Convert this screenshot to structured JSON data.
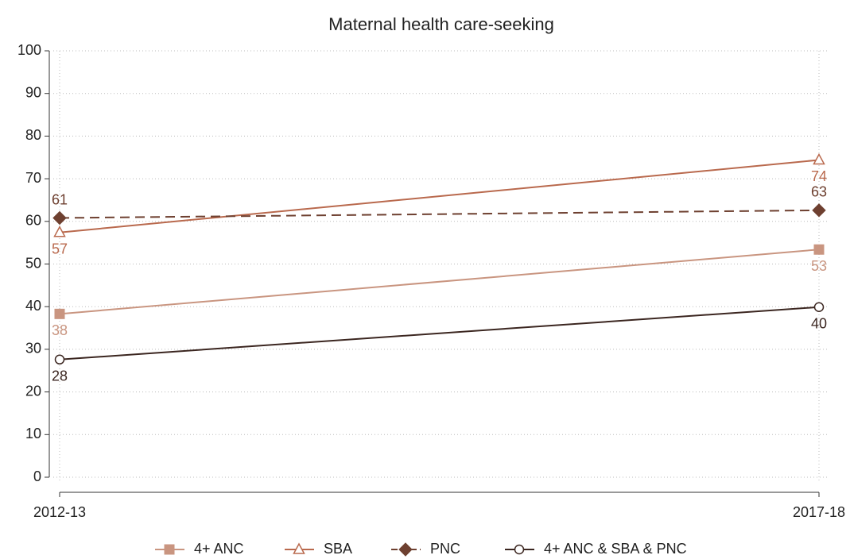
{
  "chart_data": {
    "type": "line",
    "title": "Maternal health care-seeking",
    "categories": [
      "2012-13",
      "2017-18"
    ],
    "series": [
      {
        "name": "4+ ANC",
        "color": "#c99580",
        "marker": "square",
        "line_style": "solid",
        "values": [
          38.3,
          53.4
        ],
        "value_labels": [
          "38",
          "53"
        ]
      },
      {
        "name": "SBA",
        "color": "#b9694d",
        "marker": "triangle-open",
        "line_style": "solid",
        "values": [
          57.4,
          74.4
        ],
        "value_labels": [
          "57",
          "74"
        ]
      },
      {
        "name": "PNC",
        "color": "#6e4030",
        "marker": "diamond",
        "line_style": "dashed",
        "values": [
          60.8,
          62.6
        ],
        "value_labels": [
          "61",
          "63"
        ]
      },
      {
        "name": "4+ ANC & SBA & PNC",
        "color": "#3b2620",
        "marker": "circle-open",
        "line_style": "solid",
        "values": [
          27.6,
          39.9
        ],
        "value_labels": [
          "28",
          "40"
        ]
      }
    ],
    "ylim": [
      0,
      100
    ],
    "yticks": [
      0,
      10,
      20,
      30,
      40,
      50,
      60,
      70,
      80,
      90,
      100
    ],
    "grid": true,
    "legend": "bottom"
  }
}
